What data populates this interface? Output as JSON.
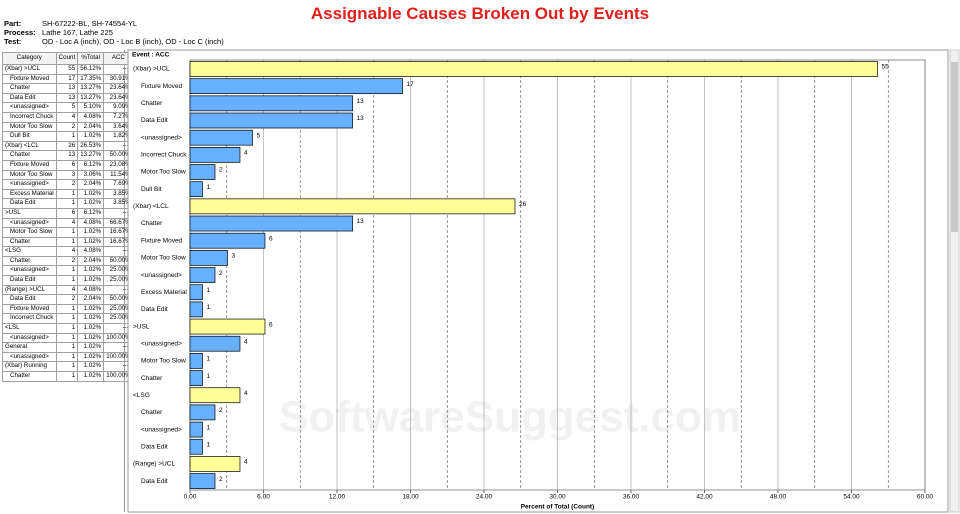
{
  "header": {
    "title": "Assignable Causes Broken Out by Events",
    "fields": [
      {
        "label": "Part:",
        "value": "SH-67222-BL, SH-74554-YL"
      },
      {
        "label": "Process:",
        "value": "Lathe 167, Lathe 225"
      },
      {
        "label": "Test:",
        "value": "OD - Loc A (inch), OD - Loc B (inch), OD - Loc C (inch)"
      }
    ]
  },
  "table": {
    "columns": [
      "Category",
      "Count",
      "%Total",
      "ACC"
    ],
    "rows": [
      [
        "(Xbar) >UCL",
        "55",
        "56.12%",
        "----"
      ],
      [
        "Fixture Moved",
        "17",
        "17.35%",
        "30.91%"
      ],
      [
        "Chatter",
        "13",
        "13.27%",
        "23.64%"
      ],
      [
        "Data Edit",
        "13",
        "13.27%",
        "23.64%"
      ],
      [
        "<unassigned>",
        "5",
        "5.10%",
        "9.09%"
      ],
      [
        "Incorrect Chuck",
        "4",
        "4.08%",
        "7.27%"
      ],
      [
        "Motor Too Slow",
        "2",
        "2.04%",
        "3.64%"
      ],
      [
        "Dull Bit",
        "1",
        "1.02%",
        "1.82%"
      ],
      [
        "(Xbar) <LCL",
        "26",
        "26.53%",
        "----"
      ],
      [
        "Chatter",
        "13",
        "13.27%",
        "50.00%"
      ],
      [
        "Fixture Moved",
        "6",
        "6.12%",
        "23.08%"
      ],
      [
        "Motor Too Slow",
        "3",
        "3.06%",
        "11.54%"
      ],
      [
        "<unassigned>",
        "2",
        "2.04%",
        "7.69%"
      ],
      [
        "Excess Material",
        "1",
        "1.02%",
        "3.85%"
      ],
      [
        "Data Edit",
        "1",
        "1.02%",
        "3.85%"
      ],
      [
        ">USL",
        "6",
        "6.12%",
        "----"
      ],
      [
        "<unassigned>",
        "4",
        "4.08%",
        "66.67%"
      ],
      [
        "Motor Too Slow",
        "1",
        "1.02%",
        "16.67%"
      ],
      [
        "Chatter",
        "1",
        "1.02%",
        "16.67%"
      ],
      [
        "<LSG",
        "4",
        "4.08%",
        "----"
      ],
      [
        "Chatter",
        "2",
        "2.04%",
        "50.00%"
      ],
      [
        "<unassigned>",
        "1",
        "1.02%",
        "25.00%"
      ],
      [
        "Data Edit",
        "1",
        "1.02%",
        "25.00%"
      ],
      [
        "(Range) >UCL",
        "4",
        "4.08%",
        "----"
      ],
      [
        "Data Edit",
        "2",
        "2.04%",
        "50.00%"
      ],
      [
        "Fixture Moved",
        "1",
        "1.02%",
        "25.00%"
      ],
      [
        "Incorrect Chuck",
        "1",
        "1.02%",
        "25.00%"
      ],
      [
        "<LSL",
        "1",
        "1.02%",
        "----"
      ],
      [
        "<unassigned>",
        "1",
        "1.02%",
        "100.00%"
      ],
      [
        "General",
        "1",
        "1.02%",
        "----"
      ],
      [
        "<unassigned>",
        "1",
        "1.02%",
        "100.00%"
      ],
      [
        "(Xbar) Running",
        "1",
        "1.02%",
        "----"
      ],
      [
        "Chatter",
        "1",
        "1.02%",
        "100.00%"
      ]
    ]
  },
  "chart_data": {
    "type": "bar",
    "title": "Event : ACC",
    "x_label": "Percent of Total (Count)",
    "categories": [
      "(Xbar) >UCL",
      "Fixture Moved",
      "Chatter",
      "Data Edit",
      "<unassigned>",
      "Incorrect Chuck",
      "Motor Too Slow",
      "Dull Bit",
      "(Xbar) <LCL",
      "Chatter",
      "Fixture Moved",
      "Motor Too Slow",
      "<unassigned>",
      "Excess Material",
      "Data Edit",
      ">USL",
      "<unassigned>",
      "Motor Too Slow",
      "Chatter",
      "<LSG",
      "Chatter",
      "<unassigned>",
      "Data Edit",
      "(Range) >UCL",
      "Data Edit"
    ],
    "values": [
      56.12,
      17.35,
      13.27,
      13.27,
      5.1,
      4.08,
      2.04,
      1.02,
      26.53,
      13.27,
      6.12,
      3.06,
      2.04,
      1.02,
      1.02,
      6.12,
      4.08,
      1.02,
      1.02,
      4.08,
      2.04,
      1.02,
      1.02,
      4.08,
      2.04
    ],
    "counts": [
      55,
      17,
      13,
      13,
      5,
      4,
      2,
      1,
      26,
      13,
      6,
      3,
      2,
      1,
      1,
      6,
      4,
      1,
      1,
      4,
      2,
      1,
      1,
      4,
      2
    ],
    "group_color": "#ffff99",
    "item_color": "#66b0ff",
    "is_group": [
      true,
      false,
      false,
      false,
      false,
      false,
      false,
      false,
      true,
      false,
      false,
      false,
      false,
      false,
      false,
      true,
      false,
      false,
      false,
      true,
      false,
      false,
      false,
      true,
      false
    ],
    "xlim": [
      0,
      60
    ],
    "xticks": [
      {
        "value": 0,
        "label": "0.00"
      },
      {
        "value": 6,
        "label": "6.00"
      },
      {
        "value": 12,
        "label": "12.00"
      },
      {
        "value": 18,
        "label": "18.00"
      },
      {
        "value": 24,
        "label": "24.00"
      },
      {
        "value": 30,
        "label": "30.00"
      },
      {
        "value": 36,
        "label": "36.00"
      },
      {
        "value": 42,
        "label": "42.00"
      },
      {
        "value": 48,
        "label": "48.00"
      },
      {
        "value": 54,
        "label": "54.00"
      },
      {
        "value": 60,
        "label": "60.00"
      }
    ],
    "minor_xticks": [
      3,
      9,
      15,
      21,
      27,
      33,
      39,
      45,
      51,
      57
    ],
    "watermark": "SoftwareSuggest.com"
  }
}
